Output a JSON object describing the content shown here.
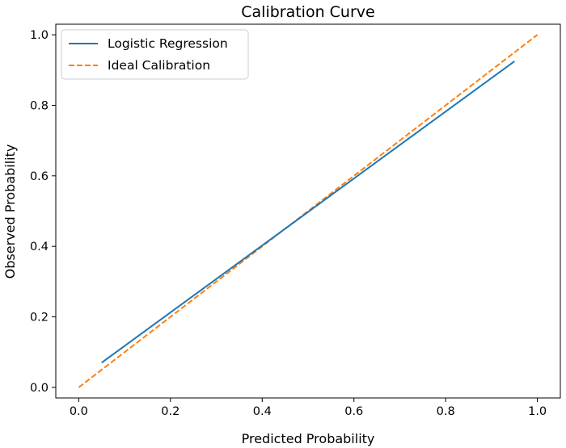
{
  "chart_data": {
    "type": "line",
    "title": "Calibration Curve",
    "xlabel": "Predicted Probability",
    "ylabel": "Observed Probability",
    "xlim": [
      -0.05,
      1.05
    ],
    "ylim": [
      -0.03,
      1.03
    ],
    "x_ticks": [
      0.0,
      0.2,
      0.4,
      0.6,
      0.8,
      1.0
    ],
    "y_ticks": [
      0.0,
      0.2,
      0.4,
      0.6,
      0.8,
      1.0
    ],
    "x_tick_labels": [
      "0.0",
      "0.2",
      "0.4",
      "0.6",
      "0.8",
      "1.0"
    ],
    "y_tick_labels": [
      "0.0",
      "0.2",
      "0.4",
      "0.6",
      "0.8",
      "1.0"
    ],
    "grid": false,
    "legend_position": "upper-left",
    "series": [
      {
        "name": "Logistic Regression",
        "color": "#1f77b4",
        "style": "solid",
        "x": [
          0.05,
          0.95
        ],
        "y": [
          0.07,
          0.925
        ]
      },
      {
        "name": "Ideal Calibration",
        "color": "#ff7f0e",
        "style": "dashed",
        "x": [
          0.0,
          1.0
        ],
        "y": [
          0.0,
          1.0
        ]
      }
    ]
  }
}
